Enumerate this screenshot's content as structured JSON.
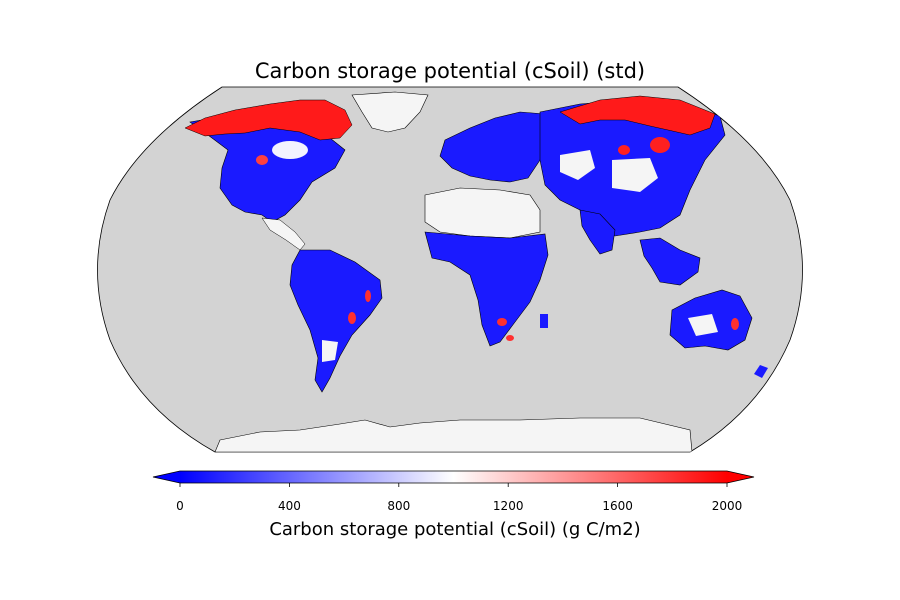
{
  "figure": {
    "title": "Carbon storage potential (cSoil) (std)",
    "projection": "robinson",
    "ocean_color": "#d3d3d3",
    "nodata_land_color": "#f5f5f5",
    "coastline_color": "#000000"
  },
  "colorbar": {
    "label": "Carbon storage potential (cSoil) (g C/m2)",
    "colormap": "bwr",
    "min": 0,
    "max": 2000,
    "ticks": [
      "0",
      "400",
      "800",
      "1200",
      "1600",
      "2000"
    ],
    "extend": "both",
    "colors": {
      "low": "#0000ff",
      "mid": "#ffffff",
      "high": "#ff0000"
    }
  },
  "regions": [
    {
      "name": "Canadian Arctic Archipelago",
      "level": "high"
    },
    {
      "name": "Northern Canada / Hudson Bay",
      "level": "mixed"
    },
    {
      "name": "Eastern North America",
      "level": "low"
    },
    {
      "name": "Western United States",
      "level": "low"
    },
    {
      "name": "Northern Siberia",
      "level": "high"
    },
    {
      "name": "Europe",
      "level": "low"
    },
    {
      "name": "Central Asia / Russia",
      "level": "mixed"
    },
    {
      "name": "South Asia",
      "level": "low"
    },
    {
      "name": "Southeast Asia",
      "level": "low"
    },
    {
      "name": "Sahara Desert",
      "level": "nodata"
    },
    {
      "name": "Central and Southern Africa",
      "level": "low"
    },
    {
      "name": "South America",
      "level": "low"
    },
    {
      "name": "Australia",
      "level": "low"
    },
    {
      "name": "Greenland",
      "level": "nodata"
    },
    {
      "name": "Antarctica",
      "level": "nodata"
    }
  ]
}
